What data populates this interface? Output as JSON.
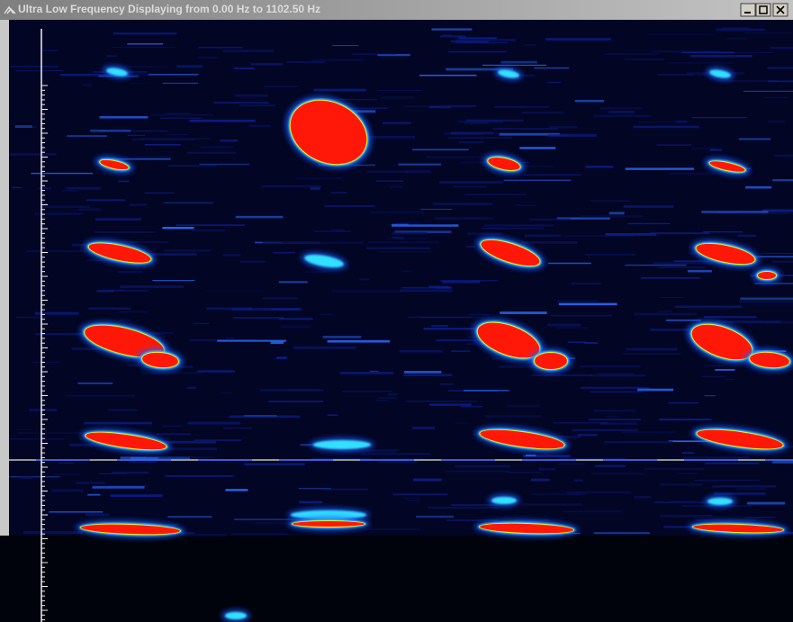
{
  "window": {
    "title": "Ultra Low Frequency Displaying from 0.00 Hz to 1102.50 Hz"
  }
}
